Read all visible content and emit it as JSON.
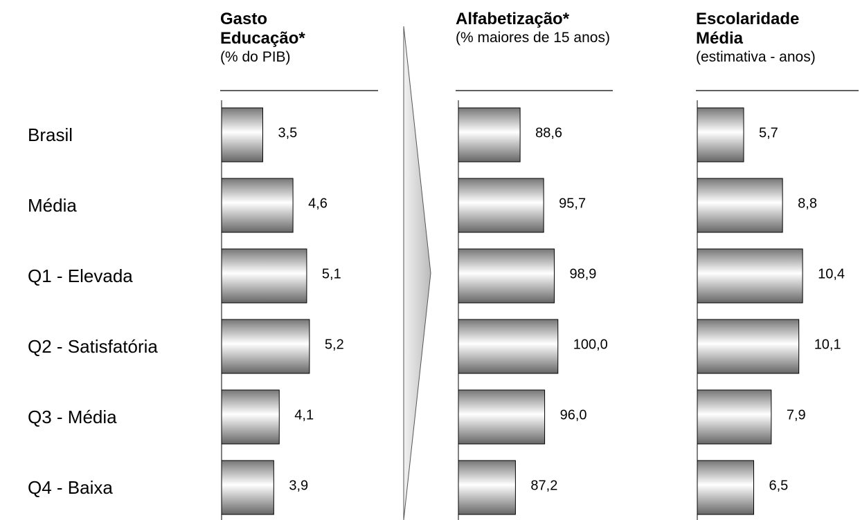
{
  "chart_data": [
    {
      "type": "bar",
      "title": "Gasto Educação*",
      "subtitle": "(% do PIB)",
      "categories": [
        "Brasil",
        "Média",
        "Q1 - Elevada",
        "Q2 - Satisfatória",
        "Q3 - Média",
        "Q4 - Baixa"
      ],
      "values": [
        3.5,
        4.6,
        5.1,
        5.2,
        4.1,
        3.9
      ],
      "value_labels": [
        "3,5",
        "4,6",
        "5,1",
        "5,2",
        "4,1",
        "3,9"
      ],
      "xlim": [
        2,
        7.8
      ]
    },
    {
      "type": "bar",
      "title": "Alfabetização*",
      "subtitle": "(% maiores de 15 anos)",
      "values": [
        88.6,
        95.7,
        98.9,
        100.0,
        96.0,
        87.2
      ],
      "value_labels": [
        "88,6",
        "95,7",
        "98,9",
        "100,0",
        "96,0",
        "87,2"
      ],
      "xlim": [
        70,
        118
      ]
    },
    {
      "type": "bar",
      "title": "Escolaridade Média",
      "subtitle": "(estimativa - anos)",
      "values": [
        5.7,
        8.8,
        10.4,
        10.1,
        7.9,
        6.5
      ],
      "value_labels": [
        "5,7",
        "8,8",
        "10,4",
        "10,1",
        "7,9",
        "6,5"
      ],
      "xlim": [
        2,
        14.7
      ]
    }
  ]
}
